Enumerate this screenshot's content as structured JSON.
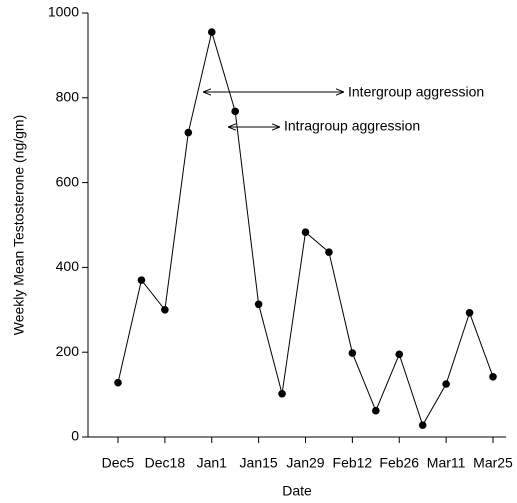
{
  "chart_data": {
    "type": "line",
    "x_label": "Date",
    "y_label": "Weekly Mean Testosterone (ng/gm)",
    "categories": [
      "Dec5",
      null,
      "Dec18",
      null,
      "Jan1",
      null,
      "Jan15",
      null,
      "Jan29",
      null,
      "Feb12",
      null,
      "Feb26",
      null,
      "Mar11",
      null,
      "Mar25"
    ],
    "values": [
      128,
      370,
      300,
      718,
      955,
      768,
      313,
      102,
      483,
      436,
      198,
      62,
      195,
      28,
      125,
      293,
      142
    ],
    "color": "#000000",
    "ylim": [
      0,
      1000
    ],
    "yticks": [
      0,
      200,
      400,
      600,
      800,
      1000
    ],
    "annotations": [
      "Intergroup aggression",
      "Intragroup aggression"
    ]
  }
}
